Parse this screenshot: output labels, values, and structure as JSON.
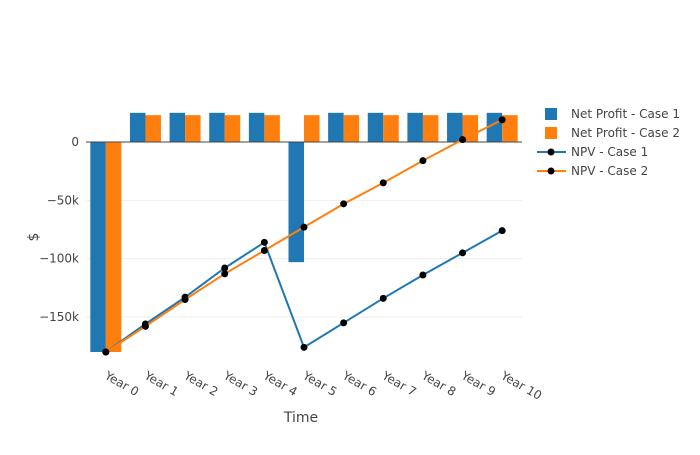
{
  "chart_data": {
    "type": "bar",
    "title": "",
    "xlabel": "Time",
    "ylabel": "$",
    "categories": [
      "Year 0",
      "Year 1",
      "Year 2",
      "Year 3",
      "Year 4",
      "Year 5",
      "Year 6",
      "Year 7",
      "Year 8",
      "Year 9",
      "Year 10"
    ],
    "ylim": [
      -180000,
      25000
    ],
    "yticks": [
      0,
      -50000,
      -100000,
      -150000
    ],
    "ytick_labels": [
      "0",
      "−50k",
      "−100k",
      "−150k"
    ],
    "grid": true,
    "legend_position": "top-right",
    "series": [
      {
        "name": "Net Profit - Case 1",
        "type": "bar",
        "color": "#1f77b4",
        "values": [
          -180000,
          25000,
          25000,
          25000,
          25000,
          -103000,
          25000,
          25000,
          25000,
          25000,
          25000
        ]
      },
      {
        "name": "Net Profit - Case 2",
        "type": "bar",
        "color": "#ff7f0e",
        "values": [
          -180000,
          23000,
          23000,
          23000,
          23000,
          23000,
          23000,
          23000,
          23000,
          23000,
          23000
        ]
      },
      {
        "name": "NPV - Case 1",
        "type": "line",
        "color": "#1f77b4",
        "marker_color": "#000000",
        "values": [
          -180000,
          -156000,
          -133000,
          -108000,
          -86000,
          -176000,
          -155000,
          -134000,
          -114000,
          -95000,
          -76000
        ]
      },
      {
        "name": "NPV - Case 2",
        "type": "line",
        "color": "#ff7f0e",
        "marker_color": "#000000",
        "values": [
          -180000,
          -158000,
          -135000,
          -113000,
          -93000,
          -73000,
          -53000,
          -35000,
          -16000,
          2000,
          19000
        ]
      }
    ]
  }
}
